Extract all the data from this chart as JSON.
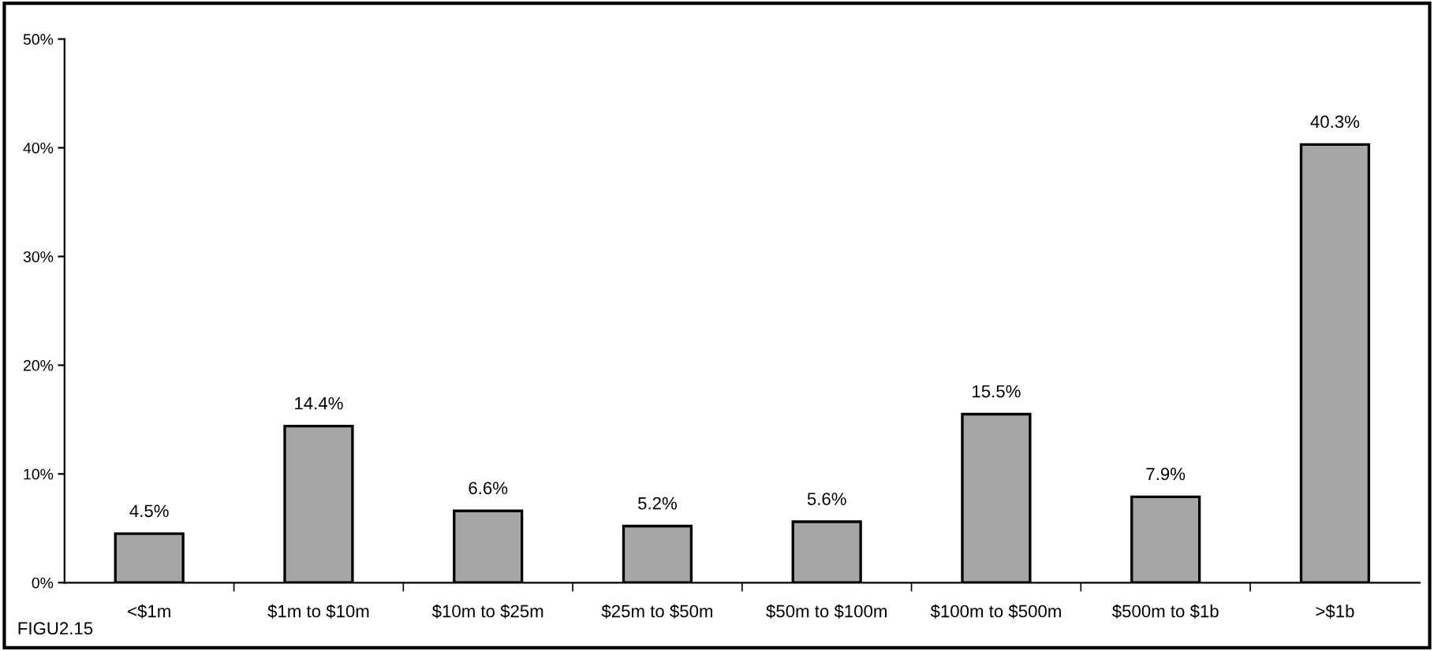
{
  "chart_data": {
    "type": "bar",
    "categories": [
      "<$1m",
      "$1m to $10m",
      "$10m to $25m",
      "$25m to $50m",
      "$50m to $100m",
      "$100m to $500m",
      "$500m to $1b",
      ">$1b"
    ],
    "values": [
      4.5,
      14.4,
      6.6,
      5.2,
      5.6,
      15.5,
      7.9,
      40.3
    ],
    "value_labels": [
      "4.5%",
      "14.4%",
      "6.6%",
      "5.2%",
      "5.6%",
      "15.5%",
      "7.9%",
      "40.3%"
    ],
    "color": "#a6a6a6",
    "ylim": [
      0,
      50
    ],
    "yticks": [
      {
        "value": 0,
        "label": "0%"
      },
      {
        "value": 10,
        "label": "10%"
      },
      {
        "value": 20,
        "label": "20%"
      },
      {
        "value": 30,
        "label": "30%"
      },
      {
        "value": 40,
        "label": "40%"
      },
      {
        "value": 50,
        "label": "50%"
      }
    ],
    "grid": false,
    "annotations": [
      "FIGU2.15"
    ]
  }
}
